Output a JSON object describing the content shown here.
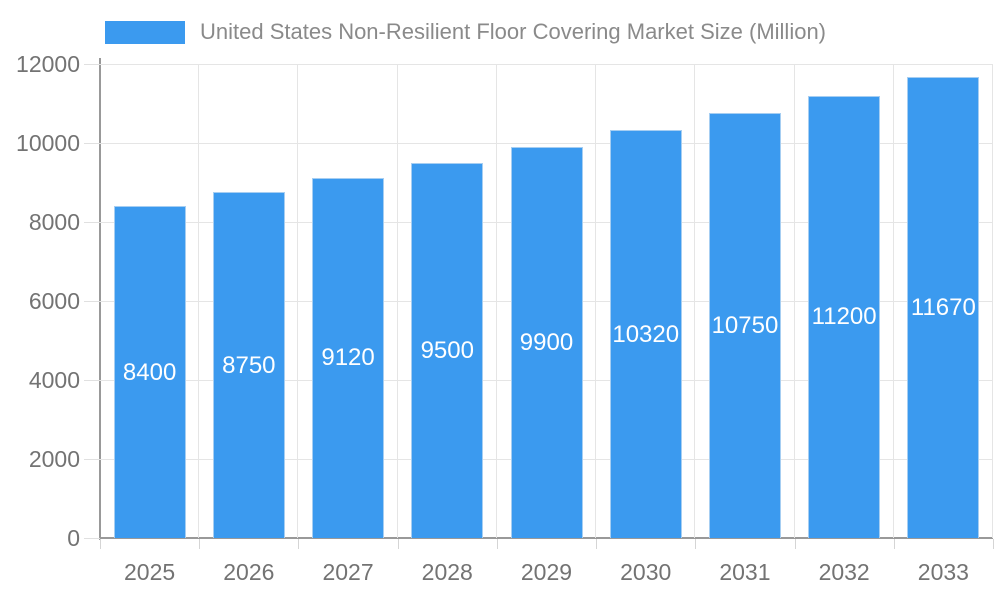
{
  "legend": {
    "label": "United States Non-Resilient Floor Covering Market Size (Million)",
    "swatch_color": "#3B9AEF"
  },
  "chart_data": {
    "type": "bar",
    "title": "United States Non-Resilient Floor Covering Market Size (Million)",
    "categories": [
      "2025",
      "2026",
      "2027",
      "2028",
      "2029",
      "2030",
      "2031",
      "2032",
      "2033"
    ],
    "values": [
      8400,
      8750,
      9120,
      9500,
      9900,
      10320,
      10750,
      11200,
      11670
    ],
    "xlabel": "",
    "ylabel": "",
    "ylim": [
      0,
      12000
    ],
    "yticks": [
      0,
      2000,
      4000,
      6000,
      8000,
      10000,
      12000
    ],
    "grid": true,
    "legend_position": "top-left",
    "value_labels": "inside-center",
    "bar_color": "#3B9AEF",
    "bar_border_color": "#A6CEF2",
    "value_label_color": "#FFFFFF",
    "axis_line_color": "#999999",
    "gridline_color": "#E5E5E5",
    "tick_label_color": "#737373",
    "legend_text_color": "#8A8A8A"
  }
}
